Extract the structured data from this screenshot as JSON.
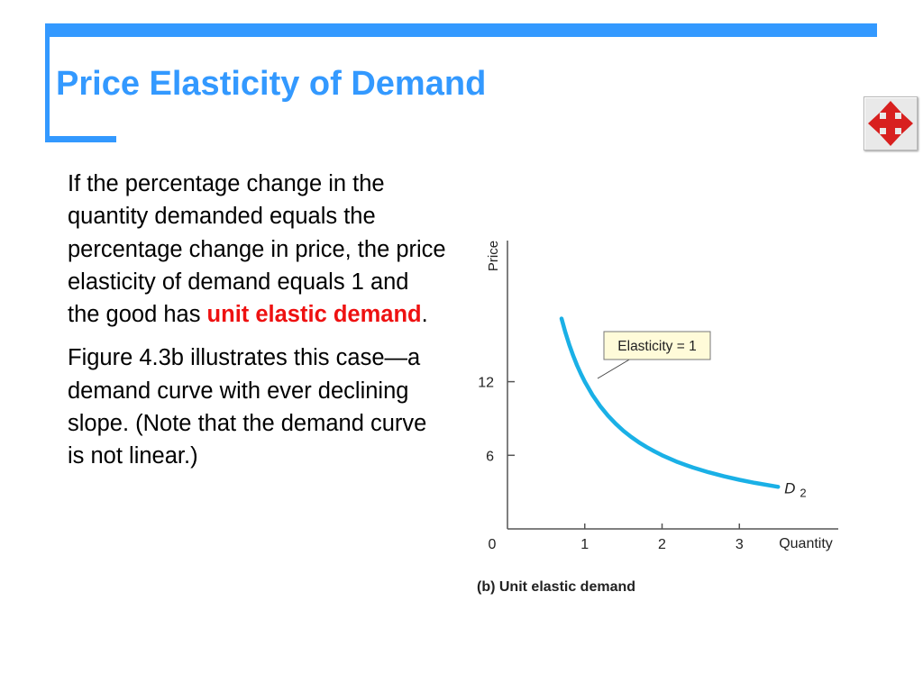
{
  "slide": {
    "title": "Price Elasticity of Demand",
    "accent_color": "#3399ff",
    "highlight_color": "#ee1111",
    "nav_icon": "four-way-arrows-icon"
  },
  "body": {
    "para1_before": "If the percentage change in the quantity demanded equals the percentage change in price, the price elasticity of demand equals 1 and the good has ",
    "para1_term": "unit elastic demand",
    "para1_after": ".",
    "para2": "Figure 4.3b illustrates this case—a demand curve with ever declining slope. (Note that the demand curve is not linear.)"
  },
  "chart_data": {
    "type": "line",
    "caption": "(b) Unit elastic demand",
    "xlabel": "Quantity",
    "ylabel": "Price",
    "origin_label": "0",
    "xticks": [
      1,
      2,
      3
    ],
    "yticks": [
      6,
      12
    ],
    "xlim": [
      0,
      3.3
    ],
    "ylim": [
      0,
      23.5
    ],
    "grid": false,
    "annotation": "Elasticity = 1",
    "series": [
      {
        "name": "D2",
        "color": "#1ab0e6",
        "function": "P = 12 / Q",
        "x": [
          0.7,
          0.75,
          0.8,
          0.85,
          0.9,
          0.95,
          1.0,
          1.1,
          1.2,
          1.3,
          1.4,
          1.5,
          1.6,
          1.7,
          1.8,
          1.9,
          2.0,
          2.2,
          2.4,
          2.6,
          2.8,
          3.0,
          3.2,
          3.5
        ],
        "y": [
          17.14,
          16.0,
          15.0,
          14.12,
          13.33,
          12.63,
          12.0,
          10.91,
          10.0,
          9.23,
          8.57,
          8.0,
          7.5,
          7.06,
          6.67,
          6.32,
          6.0,
          5.45,
          5.0,
          4.62,
          4.29,
          4.0,
          3.75,
          3.43
        ]
      }
    ],
    "series_label_main": "D",
    "series_label_sub": "2"
  }
}
